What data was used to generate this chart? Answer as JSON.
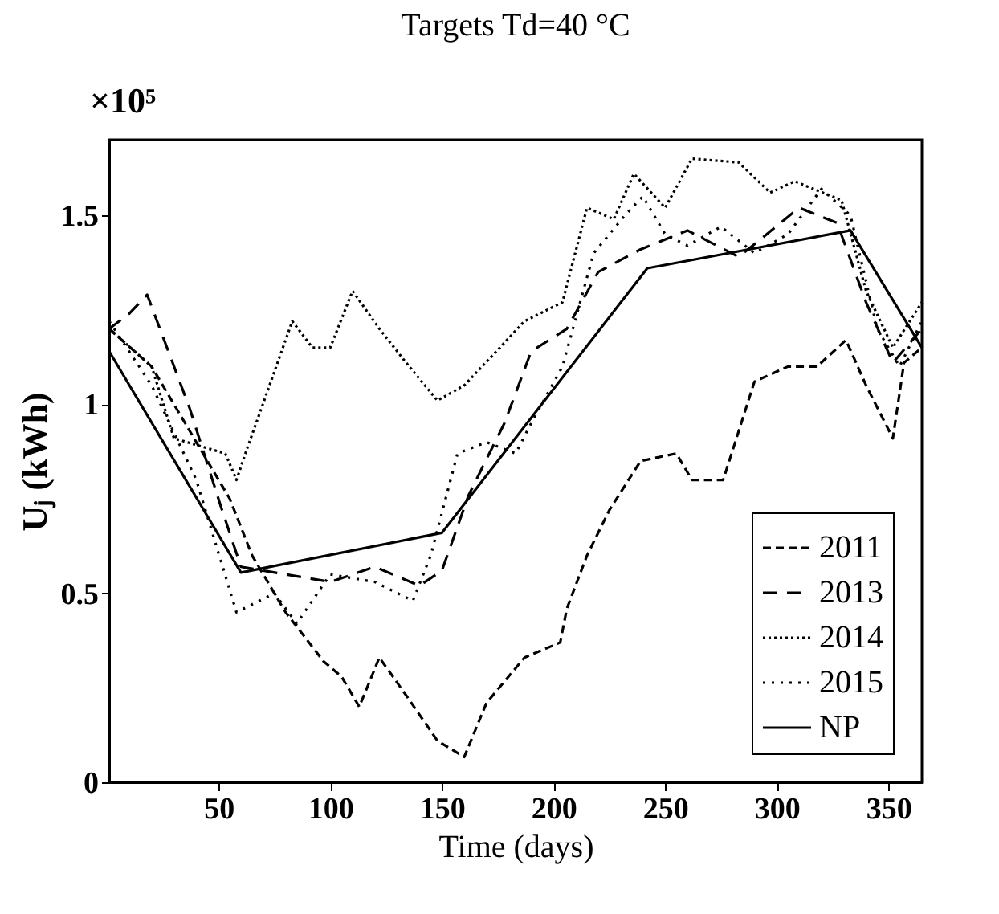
{
  "chart_data": {
    "type": "line",
    "title": "Targets Td=40 °C",
    "xlabel": "Time (days)",
    "ylabel": "Uⱼ (kWh)",
    "annotations": [
      "×10⁵"
    ],
    "xlim": [
      1,
      365
    ],
    "ylim": [
      0,
      1.7
    ],
    "xticks": [
      50,
      100,
      150,
      200,
      250,
      300,
      350
    ],
    "yticks": [
      0,
      0.5,
      1,
      1.5
    ],
    "grid": false,
    "legend": "bottom right",
    "marker": "none",
    "series": [
      {
        "name": "2011",
        "color": "#000000",
        "line_style": "dashed",
        "x": [
          1,
          20,
          40,
          55,
          65,
          80,
          97,
          105,
          113,
          122,
          134,
          148,
          160,
          170,
          187,
          203,
          206,
          215,
          225,
          239,
          255,
          262,
          276,
          290,
          305,
          318,
          331,
          340,
          352,
          357,
          365
        ],
        "values": [
          1.2,
          1.1,
          0.9,
          0.75,
          0.6,
          0.45,
          0.32,
          0.28,
          0.2,
          0.33,
          0.23,
          0.11,
          0.067,
          0.21,
          0.33,
          0.37,
          0.46,
          0.6,
          0.72,
          0.85,
          0.87,
          0.8,
          0.8,
          1.06,
          1.1,
          1.1,
          1.17,
          1.05,
          0.91,
          1.11,
          1.15
        ]
      },
      {
        "name": "2013",
        "color": "#000000",
        "line_style": "dashed",
        "x": [
          1,
          10,
          18,
          37,
          51,
          60,
          80,
          100,
          120,
          140,
          150,
          162,
          178,
          190,
          206,
          220,
          239,
          260,
          283,
          310,
          327,
          340,
          352,
          365
        ],
        "values": [
          1.2,
          1.24,
          1.29,
          0.99,
          0.73,
          0.57,
          0.55,
          0.53,
          0.57,
          0.52,
          0.56,
          0.76,
          0.95,
          1.14,
          1.2,
          1.35,
          1.41,
          1.46,
          1.39,
          1.52,
          1.48,
          1.27,
          1.11,
          1.2
        ]
      },
      {
        "name": "2014",
        "color": "#000000",
        "line_style": "dotted",
        "x": [
          1,
          20,
          30,
          53,
          58,
          62,
          83,
          92,
          100,
          104,
          110,
          122,
          134,
          148,
          160,
          176,
          187,
          204,
          215,
          227,
          236,
          250,
          262,
          283,
          297,
          308,
          329,
          340,
          352,
          365
        ],
        "values": [
          1.2,
          1.1,
          0.91,
          0.87,
          0.8,
          0.87,
          1.22,
          1.15,
          1.15,
          1.21,
          1.3,
          1.2,
          1.11,
          1.01,
          1.05,
          1.15,
          1.22,
          1.27,
          1.52,
          1.49,
          1.61,
          1.52,
          1.65,
          1.64,
          1.56,
          1.59,
          1.54,
          1.3,
          1.15,
          1.27
        ]
      },
      {
        "name": "2015",
        "color": "#000000",
        "line_style": "dotted",
        "x": [
          1,
          20,
          40,
          58,
          75,
          85,
          100,
          120,
          137,
          145,
          157,
          170,
          183,
          190,
          204,
          218,
          232,
          240,
          250,
          260,
          275,
          290,
          305,
          320,
          333,
          345,
          355,
          365
        ],
        "values": [
          1.22,
          1.05,
          0.8,
          0.45,
          0.5,
          0.42,
          0.55,
          0.53,
          0.48,
          0.6,
          0.87,
          0.9,
          0.87,
          0.95,
          1.1,
          1.4,
          1.5,
          1.55,
          1.45,
          1.42,
          1.47,
          1.4,
          1.45,
          1.57,
          1.5,
          1.2,
          1.1,
          1.22
        ]
      },
      {
        "name": "NP",
        "color": "#000000",
        "line_style": "solid",
        "x": [
          1,
          60,
          150,
          242,
          333,
          365
        ],
        "values": [
          1.14,
          0.555,
          0.66,
          1.36,
          1.46,
          1.15
        ]
      }
    ]
  }
}
